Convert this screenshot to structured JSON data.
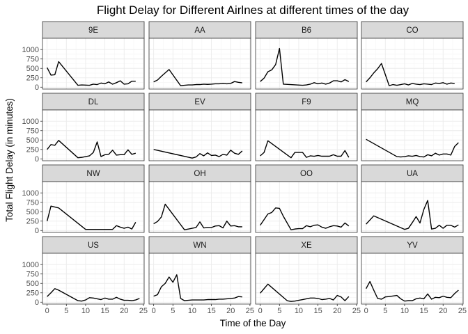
{
  "chart_data": {
    "type": "line",
    "title": "Flight Delay for Different Airlnes at different times of the day",
    "xlabel": "Time of the Day",
    "ylabel": "Total Flight Delay (in minutes)",
    "xlim": [
      0,
      24
    ],
    "ylim": [
      0,
      1000
    ],
    "xticks": [
      0,
      5,
      10,
      15,
      20,
      25
    ],
    "yticks": [
      0,
      250,
      500,
      750,
      1000
    ],
    "grid": true,
    "facet_layout": "4 columns x 4 rows",
    "colors": {
      "line": "#000000",
      "strip": "#d9d9d9",
      "grid": "#ebebeb"
    },
    "panels": [
      {
        "name": "9E",
        "x": [
          0,
          1,
          2,
          3,
          8,
          9,
          10,
          11,
          12,
          13,
          14,
          15,
          16,
          17,
          18,
          19,
          20,
          21,
          22,
          23
        ],
        "y": [
          520,
          320,
          330,
          680,
          50,
          60,
          55,
          50,
          80,
          70,
          110,
          90,
          140,
          80,
          120,
          170,
          80,
          90,
          160,
          160
        ]
      },
      {
        "name": "AA",
        "x": [
          0,
          1,
          2,
          4,
          7,
          8,
          9,
          10,
          11,
          12,
          13,
          14,
          15,
          16,
          17,
          18,
          19,
          20,
          21,
          22,
          23
        ],
        "y": [
          140,
          190,
          290,
          470,
          40,
          50,
          60,
          60,
          70,
          70,
          80,
          75,
          80,
          90,
          90,
          100,
          90,
          100,
          150,
          130,
          115
        ]
      },
      {
        "name": "B6",
        "x": [
          0,
          1,
          2,
          3,
          4,
          5,
          6,
          11,
          12,
          13,
          14,
          15,
          16,
          17,
          18,
          19,
          20,
          21,
          22,
          23
        ],
        "y": [
          150,
          240,
          410,
          460,
          600,
          1030,
          80,
          50,
          60,
          80,
          120,
          90,
          110,
          80,
          110,
          170,
          170,
          140,
          200,
          150
        ]
      },
      {
        "name": "CO",
        "x": [
          0,
          1,
          2,
          3,
          4,
          6,
          7,
          8,
          9,
          10,
          11,
          12,
          13,
          14,
          15,
          16,
          17,
          18,
          19,
          20,
          21,
          22,
          23
        ],
        "y": [
          140,
          250,
          380,
          490,
          630,
          40,
          70,
          50,
          70,
          90,
          60,
          100,
          80,
          70,
          90,
          80,
          70,
          110,
          100,
          120,
          80,
          110,
          100
        ]
      },
      {
        "name": "DL",
        "x": [
          0,
          1,
          2,
          3,
          8,
          9,
          10,
          11,
          12,
          13,
          14,
          15,
          16,
          17,
          18,
          19,
          20,
          21,
          22,
          23
        ],
        "y": [
          250,
          380,
          360,
          490,
          30,
          40,
          60,
          80,
          170,
          450,
          60,
          110,
          120,
          230,
          100,
          110,
          110,
          240,
          120,
          150
        ]
      },
      {
        "name": "EV",
        "x": [
          0,
          10,
          11,
          12,
          13,
          14,
          15,
          16,
          17,
          18,
          19,
          20,
          21,
          22,
          23
        ],
        "y": [
          250,
          20,
          50,
          140,
          80,
          160,
          90,
          100,
          60,
          120,
          100,
          230,
          150,
          120,
          210
        ]
      },
      {
        "name": "F9",
        "x": [
          0,
          1,
          2,
          8,
          9,
          10,
          11,
          12,
          13,
          14,
          15,
          16,
          17,
          18,
          19,
          20,
          21,
          22,
          23
        ],
        "y": [
          80,
          170,
          480,
          30,
          170,
          170,
          170,
          40,
          80,
          70,
          90,
          70,
          70,
          70,
          110,
          70,
          70,
          220,
          40
        ]
      },
      {
        "name": "MQ",
        "x": [
          0,
          8,
          9,
          10,
          11,
          12,
          13,
          14,
          15,
          16,
          17,
          18,
          19,
          20,
          21,
          22,
          23,
          24
        ],
        "y": [
          520,
          60,
          50,
          60,
          80,
          70,
          90,
          60,
          50,
          110,
          80,
          150,
          100,
          130,
          130,
          100,
          330,
          430
        ]
      },
      {
        "name": "NW",
        "x": [
          0,
          1,
          3,
          10,
          17,
          18,
          19,
          20,
          21,
          22,
          23
        ],
        "y": [
          250,
          650,
          600,
          30,
          30,
          130,
          90,
          60,
          90,
          40,
          220
        ]
      },
      {
        "name": "OH",
        "x": [
          0,
          1,
          2,
          3,
          8,
          9,
          10,
          11,
          12,
          13,
          14,
          15,
          16,
          17,
          18,
          19,
          20,
          21,
          22,
          23
        ],
        "y": [
          180,
          240,
          360,
          700,
          20,
          40,
          60,
          80,
          230,
          70,
          80,
          80,
          120,
          130,
          70,
          250,
          120,
          130,
          100,
          100
        ]
      },
      {
        "name": "OO",
        "x": [
          0,
          1,
          2,
          3,
          4,
          5,
          6,
          8,
          9,
          10,
          11,
          12,
          13,
          14,
          15,
          16,
          17,
          18,
          19,
          20,
          21,
          22,
          23
        ],
        "y": [
          140,
          290,
          440,
          480,
          600,
          590,
          380,
          20,
          40,
          50,
          50,
          130,
          100,
          140,
          150,
          90,
          60,
          100,
          130,
          120,
          90,
          200,
          120
        ]
      },
      {
        "name": "UA",
        "x": [
          0,
          2,
          10,
          11,
          12,
          13,
          14,
          15,
          16,
          17,
          18,
          19,
          20,
          21,
          22,
          23,
          24
        ],
        "y": [
          170,
          390,
          30,
          60,
          210,
          370,
          200,
          560,
          800,
          40,
          60,
          140,
          60,
          140,
          140,
          90,
          150
        ]
      },
      {
        "name": "US",
        "x": [
          0,
          1,
          2,
          3,
          8,
          9,
          10,
          11,
          12,
          13,
          14,
          15,
          16,
          17,
          18,
          19,
          20,
          21,
          22,
          23,
          24
        ],
        "y": [
          150,
          250,
          360,
          320,
          40,
          30,
          60,
          120,
          110,
          90,
          70,
          110,
          80,
          80,
          130,
          80,
          50,
          50,
          40,
          60,
          100
        ]
      },
      {
        "name": "WN",
        "x": [
          0,
          1,
          2,
          3,
          4,
          5,
          6,
          7,
          8,
          9,
          10,
          11,
          12,
          13,
          14,
          15,
          16,
          17,
          18,
          19,
          20,
          21,
          22,
          23
        ],
        "y": [
          160,
          200,
          410,
          500,
          670,
          530,
          730,
          100,
          40,
          50,
          60,
          60,
          60,
          60,
          70,
          70,
          70,
          80,
          80,
          90,
          100,
          110,
          150,
          140
        ]
      },
      {
        "name": "XE",
        "x": [
          0,
          2,
          7,
          8,
          9,
          10,
          11,
          12,
          13,
          14,
          15,
          16,
          17,
          18,
          19,
          20,
          21,
          22,
          23
        ],
        "y": [
          240,
          480,
          40,
          20,
          30,
          50,
          70,
          90,
          110,
          110,
          100,
          70,
          80,
          100,
          60,
          180,
          140,
          40,
          150
        ]
      },
      {
        "name": "YV",
        "x": [
          0,
          1,
          2,
          3,
          4,
          5,
          6,
          8,
          9,
          10,
          11,
          12,
          13,
          14,
          15,
          16,
          17,
          18,
          19,
          20,
          21,
          22,
          23,
          24
        ],
        "y": [
          360,
          550,
          320,
          100,
          80,
          140,
          150,
          180,
          90,
          30,
          40,
          40,
          90,
          110,
          90,
          220,
          80,
          130,
          120,
          160,
          130,
          120,
          230,
          320
        ]
      }
    ]
  }
}
